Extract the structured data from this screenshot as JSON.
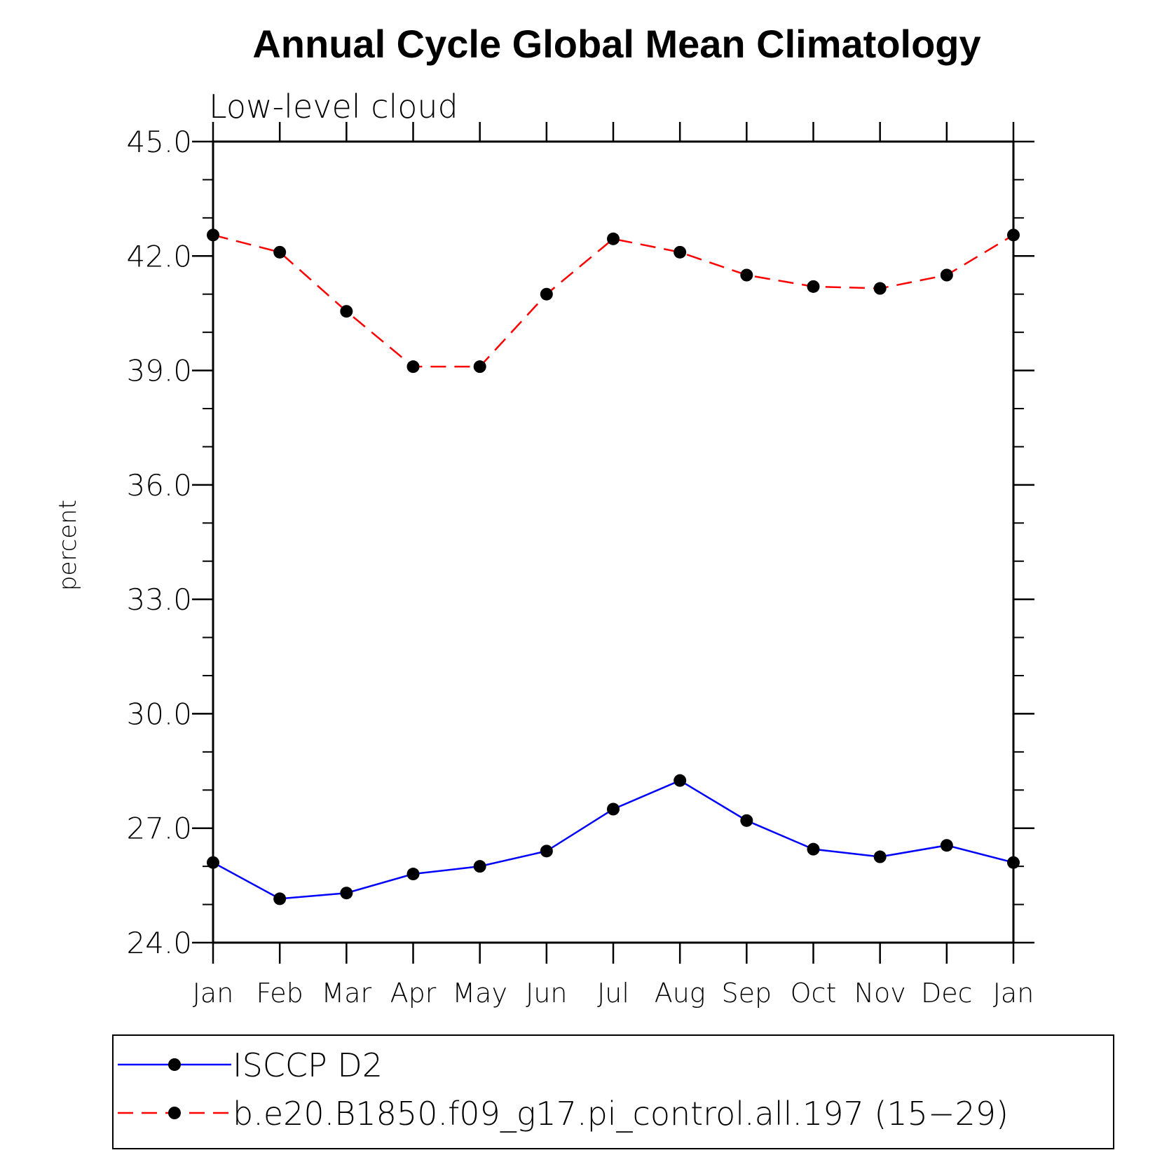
{
  "chart_data": {
    "type": "line",
    "title": "Annual Cycle Global Mean Climatology",
    "subtitle": "Low-level cloud",
    "ylabel": "percent",
    "xlabel": "",
    "ylim": [
      24.0,
      45.0
    ],
    "yticks": [
      "24.0",
      "27.0",
      "30.0",
      "33.0",
      "36.0",
      "39.0",
      "42.0",
      "45.0"
    ],
    "ytick_values": [
      24,
      27,
      30,
      33,
      36,
      39,
      42,
      45
    ],
    "categories": [
      "Jan",
      "Feb",
      "Mar",
      "Apr",
      "May",
      "Jun",
      "Jul",
      "Aug",
      "Sep",
      "Oct",
      "Nov",
      "Dec",
      "Jan"
    ],
    "grid": false,
    "legend_position": "bottom",
    "series": [
      {
        "name": "ISCCP D2",
        "color": "#0000ff",
        "dash": "solid",
        "marker": "dot",
        "values": [
          26.1,
          25.15,
          25.3,
          25.8,
          26.0,
          26.4,
          27.5,
          28.25,
          27.2,
          26.45,
          26.25,
          26.55,
          26.1
        ]
      },
      {
        "name": "b.e20.B1850.f09_g17.pi_control.all.197 (15−29)",
        "color": "#ff0000",
        "dash": "dashed",
        "marker": "dot",
        "values": [
          42.55,
          42.1,
          40.55,
          39.1,
          39.1,
          41.0,
          42.45,
          42.1,
          41.5,
          41.2,
          41.15,
          41.5,
          42.55
        ]
      }
    ]
  }
}
